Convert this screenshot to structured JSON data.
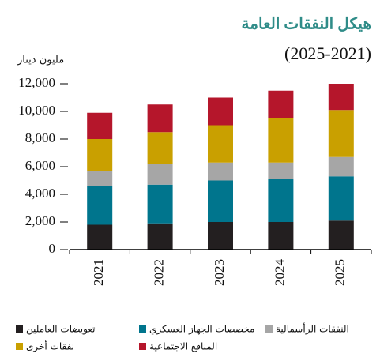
{
  "chart_data": {
    "type": "stacked_bar",
    "title": "هيكل النفقات العامة",
    "subtitle": "(2025-2021)",
    "y_axis_label": "مليون دينار",
    "categories": [
      "2021",
      "2022",
      "2023",
      "2024",
      "2025"
    ],
    "series": [
      {
        "name": "تعويضات العاملين",
        "color": "#231f20",
        "values": [
          1800,
          1900,
          2000,
          2000,
          2100
        ]
      },
      {
        "name": "مخصصات الجهاز العسكري",
        "color": "#00758d",
        "values": [
          2800,
          2800,
          3000,
          3100,
          3200
        ]
      },
      {
        "name": "النفقات الرأسمالية",
        "color": "#a6a6a6",
        "values": [
          1100,
          1500,
          1300,
          1200,
          1400
        ]
      },
      {
        "name": "نفقات أخرى",
        "color": "#c9a000",
        "values": [
          2300,
          2300,
          2700,
          3200,
          3400
        ]
      },
      {
        "name": "المنافع الاجتماعية",
        "color": "#b5162b",
        "values": [
          1900,
          2000,
          2000,
          2000,
          1900
        ]
      }
    ],
    "ylim": [
      0,
      12000
    ],
    "yticks": [
      0,
      {
        "value": 2000,
        "label": "2,000"
      },
      {
        "value": 4000,
        "label": "4,000"
      },
      {
        "value": 6000,
        "label": "6,000"
      },
      {
        "value": 8000,
        "label": "8,000"
      },
      {
        "value": 10000,
        "label": "10,000"
      },
      {
        "value": 12000,
        "label": "12,000"
      }
    ]
  }
}
